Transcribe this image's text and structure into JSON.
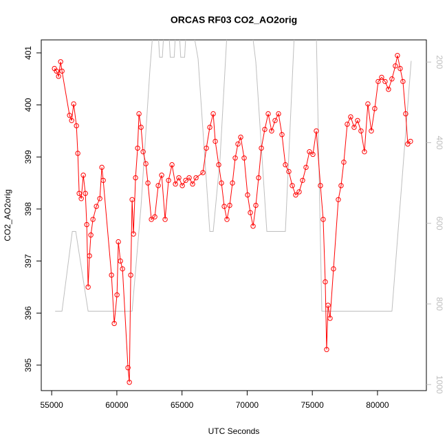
{
  "chart_data": {
    "type": "line",
    "title": "ORCAS RF03 CO2_AO2orig",
    "x_label": "UTC Seconds",
    "y_label": "CO2_AO2orig",
    "xlim": [
      54200,
      83750
    ],
    "xticks": [
      55000,
      60000,
      65000,
      70000,
      75000,
      80000
    ],
    "ylim": [
      394.51,
      401.25
    ],
    "yticks": [
      395,
      396,
      397,
      398,
      399,
      400,
      401
    ],
    "y2lim": [
      1015,
      145
    ],
    "y2ticks": [
      200,
      400,
      600,
      800,
      1000
    ],
    "series": [
      {
        "color": "#bebebe",
        "axis": "y2",
        "markers": false,
        "x": [
          55264,
          55791,
          56582,
          56846,
          57795,
          61171,
          61857,
          62542,
          62753,
          63175,
          63280,
          63491,
          63597,
          64000,
          64100,
          64400,
          64500,
          64800,
          64900,
          65200,
          65300,
          65900,
          66234,
          67131,
          67395,
          67922,
          68449,
          70400,
          70665,
          71508,
          72932,
          73618,
          75306,
          75728,
          81108,
          82585
        ],
        "values": [
          818,
          818,
          620,
          620,
          818,
          818,
          557,
          217,
          130,
          130,
          188,
          188,
          130,
          130,
          188,
          188,
          130,
          130,
          188,
          188,
          130,
          130,
          192,
          620,
          620,
          438,
          130,
          130,
          200,
          620,
          620,
          130,
          130,
          818,
          818,
          197
        ]
      },
      {
        "color": "#ff0000",
        "axis": "y",
        "markers": true,
        "x": [
          55211,
          55369,
          55527,
          55686,
          55791,
          56371,
          56530,
          56688,
          56899,
          57004,
          57110,
          57268,
          57426,
          57584,
          57690,
          57795,
          57900,
          58006,
          58165,
          58428,
          58692,
          58850,
          58956,
          59589,
          59800,
          60011,
          60116,
          60274,
          60433,
          60854,
          60960,
          61065,
          61171,
          61276,
          61434,
          61593,
          61698,
          61857,
          62015,
          62226,
          62384,
          62648,
          62912,
          63175,
          63439,
          63702,
          63966,
          64230,
          64494,
          64757,
          65021,
          65285,
          65548,
          65812,
          66076,
          66603,
          66867,
          67131,
          67395,
          67553,
          67817,
          68028,
          68239,
          68449,
          68660,
          68871,
          69082,
          69293,
          69504,
          69768,
          70032,
          70243,
          70454,
          70665,
          70876,
          71087,
          71351,
          71614,
          71878,
          72142,
          72405,
          72669,
          72932,
          73196,
          73460,
          73723,
          73987,
          74251,
          74515,
          74778,
          75042,
          75306,
          75622,
          75833,
          75992,
          76097,
          76203,
          76361,
          76624,
          76994,
          77205,
          77416,
          77679,
          77943,
          78207,
          78470,
          78734,
          78998,
          79262,
          79525,
          79789,
          80053,
          80316,
          80580,
          80844,
          81108,
          81371,
          81530,
          81741,
          81952,
          82163,
          82321,
          82532
        ],
        "values": [
          400.7,
          400.65,
          400.55,
          400.83,
          400.65,
          399.8,
          399.7,
          400.02,
          399.6,
          399.07,
          398.3,
          398.2,
          398.65,
          398.3,
          397.7,
          396.5,
          397.1,
          397.5,
          397.8,
          398.05,
          398.2,
          398.8,
          398.55,
          396.73,
          395.8,
          396.35,
          397.37,
          397.0,
          396.85,
          394.95,
          394.67,
          396.73,
          398.18,
          397.52,
          398.6,
          399.17,
          399.83,
          399.57,
          399.1,
          398.87,
          398.5,
          397.8,
          397.85,
          398.45,
          398.65,
          397.8,
          398.55,
          398.85,
          398.48,
          398.6,
          398.45,
          398.55,
          398.6,
          398.48,
          398.6,
          398.7,
          399.17,
          399.57,
          399.83,
          399.3,
          398.85,
          398.5,
          398.05,
          397.8,
          398.07,
          398.5,
          398.98,
          399.25,
          399.38,
          398.98,
          398.27,
          397.93,
          397.67,
          398.07,
          398.6,
          399.17,
          399.53,
          399.83,
          399.5,
          399.7,
          399.83,
          399.43,
          398.85,
          398.72,
          398.45,
          398.27,
          398.33,
          398.55,
          398.8,
          399.1,
          399.05,
          399.5,
          398.45,
          397.8,
          396.6,
          395.3,
          396.15,
          395.9,
          396.85,
          398.18,
          398.45,
          398.9,
          399.63,
          399.77,
          399.57,
          399.7,
          399.5,
          399.1,
          400.02,
          399.5,
          399.93,
          400.45,
          400.53,
          400.45,
          400.3,
          400.5,
          400.75,
          400.95,
          400.7,
          400.45,
          399.83,
          399.25,
          399.3
        ]
      }
    ]
  }
}
